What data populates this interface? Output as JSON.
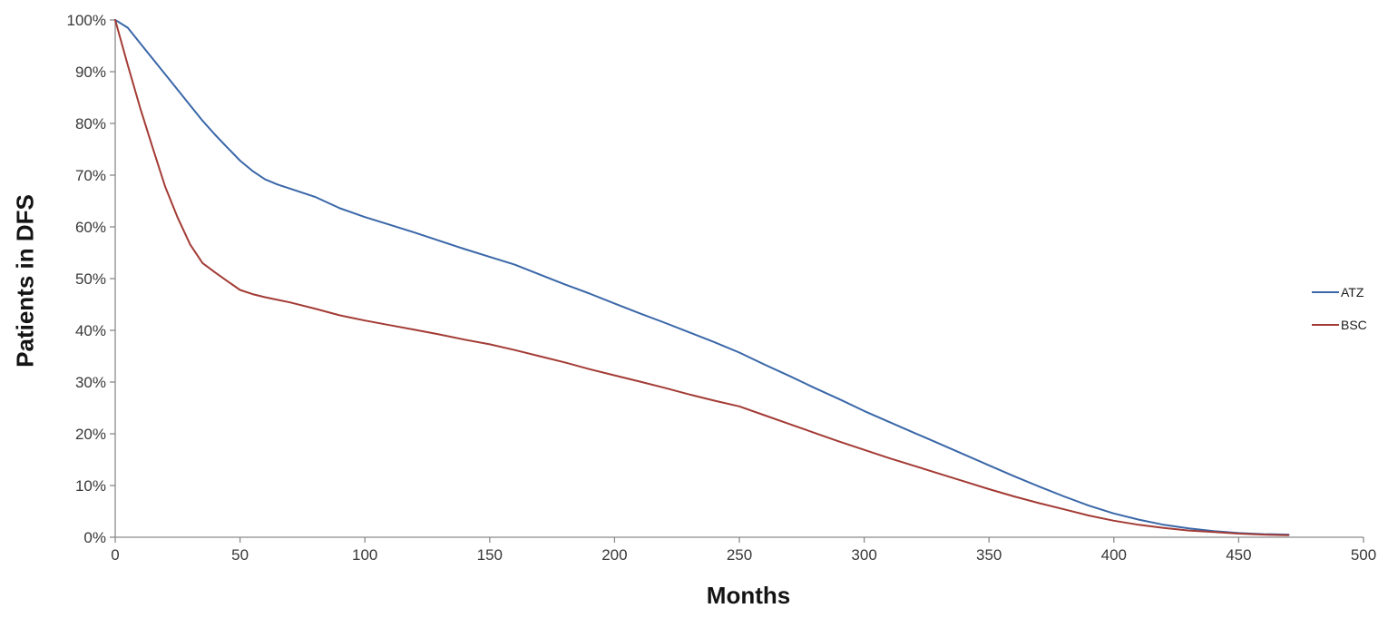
{
  "chart_data": {
    "type": "line",
    "title": "",
    "xlabel": "Months",
    "ylabel": "Patients in DFS",
    "xlim": [
      0,
      500
    ],
    "ylim": [
      0,
      100
    ],
    "grid": false,
    "legend_position": "right-middle",
    "axis_line_color": "#8a8a8a",
    "tick_label_color": "#383838",
    "xtick_values": [
      0,
      50,
      100,
      150,
      200,
      250,
      300,
      350,
      400,
      450,
      500
    ],
    "xtick_labels": [
      "0",
      "50",
      "100",
      "150",
      "200",
      "250",
      "300",
      "350",
      "400",
      "450",
      "500"
    ],
    "ytick_values": [
      0,
      10,
      20,
      30,
      40,
      50,
      60,
      70,
      80,
      90,
      100
    ],
    "ytick_labels": [
      "0%",
      "10%",
      "20%",
      "30%",
      "40%",
      "50%",
      "60%",
      "70%",
      "80%",
      "90%",
      "100%"
    ],
    "x": [
      0,
      5,
      10,
      15,
      20,
      25,
      30,
      35,
      40,
      45,
      50,
      55,
      60,
      65,
      70,
      80,
      90,
      100,
      110,
      120,
      130,
      140,
      150,
      160,
      170,
      180,
      190,
      200,
      210,
      220,
      230,
      240,
      250,
      260,
      270,
      280,
      290,
      300,
      310,
      320,
      330,
      340,
      350,
      360,
      370,
      380,
      390,
      400,
      410,
      420,
      430,
      440,
      450,
      460,
      470
    ],
    "series": [
      {
        "name": "ATZ",
        "color": "#3a67a8",
        "values": [
          100,
          98.5,
          95.5,
          92.5,
          89.5,
          86.5,
          83.5,
          80.5,
          77.8,
          75.3,
          72.8,
          70.8,
          69.2,
          68.2,
          67.4,
          65.8,
          63.6,
          61.9,
          60.4,
          58.9,
          57.3,
          55.7,
          54.2,
          52.7,
          50.8,
          48.9,
          47.1,
          45.2,
          43.3,
          41.5,
          39.6,
          37.7,
          35.7,
          33.4,
          31.2,
          28.9,
          26.7,
          24.4,
          22.3,
          20.2,
          18.1,
          16.0,
          13.9,
          11.8,
          9.8,
          7.9,
          6.1,
          4.6,
          3.4,
          2.4,
          1.7,
          1.2,
          0.8,
          0.6,
          0.5
        ]
      },
      {
        "name": "BSC",
        "color": "#a33b35",
        "values": [
          100,
          91.3,
          83.0,
          75.3,
          67.8,
          61.8,
          56.6,
          53.0,
          51.2,
          49.5,
          47.8,
          47.0,
          46.4,
          45.9,
          45.4,
          44.2,
          42.9,
          41.9,
          41.0,
          40.1,
          39.2,
          38.2,
          37.3,
          36.2,
          35.0,
          33.8,
          32.5,
          31.3,
          30.1,
          28.9,
          27.6,
          26.4,
          25.3,
          23.6,
          21.9,
          20.2,
          18.5,
          16.9,
          15.3,
          13.8,
          12.3,
          10.8,
          9.3,
          7.9,
          6.6,
          5.4,
          4.2,
          3.2,
          2.4,
          1.8,
          1.3,
          1.0,
          0.7,
          0.5,
          0.4
        ]
      }
    ]
  }
}
